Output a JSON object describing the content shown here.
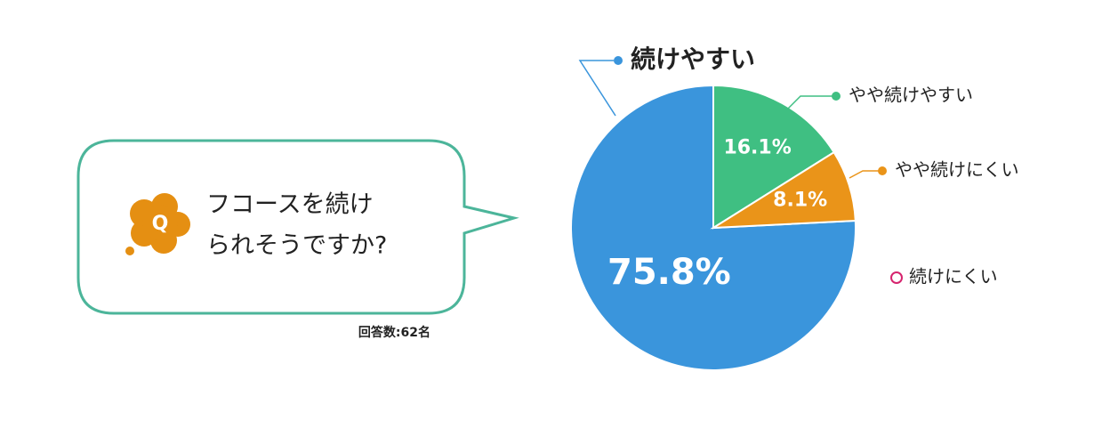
{
  "question": [
    "フコースを続け",
    "られそうですか?"
  ],
  "q_icon": "Q",
  "respondents": "回答数:62名",
  "chart_data": {
    "type": "pie",
    "categories": [
      "続けやすい",
      "やや続けやすい",
      "やや続けにくい",
      "続けにくい"
    ],
    "values": [
      75.8,
      16.1,
      8.1,
      0
    ],
    "value_labels": [
      "75.8%",
      "16.1%",
      "8.1%",
      null
    ],
    "colors": [
      "#3a95dc",
      "#3fbf82",
      "#ea9419",
      "#d6246e"
    ]
  }
}
